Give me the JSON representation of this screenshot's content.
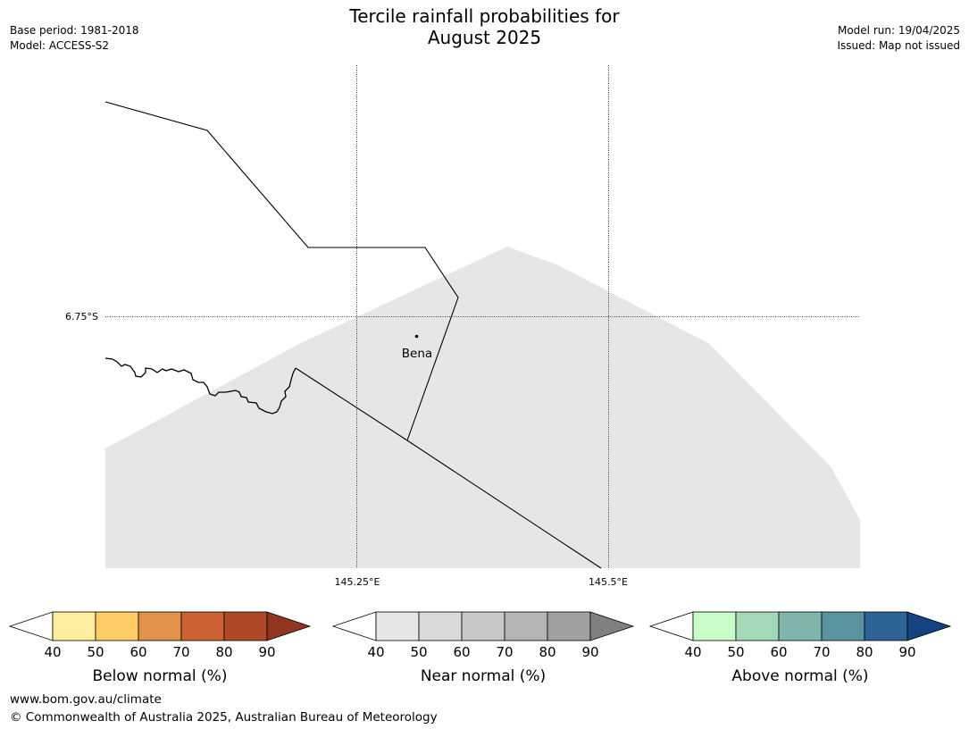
{
  "title": {
    "line1": "Tercile rainfall probabilities for",
    "line2": "August 2025"
  },
  "meta_left": {
    "base_period": "Base period: 1981-2018",
    "model": "Model: ACCESS-S2"
  },
  "meta_right": {
    "model_run": "Model run: 19/04/2025",
    "issued": "Issued: Map not issued"
  },
  "map": {
    "lat_label": "6.75°S",
    "lon_labels": [
      "145.25°E",
      "145.5°E"
    ],
    "place": "Bena",
    "no_data_color": "#e6e6e6"
  },
  "legends": [
    {
      "label": "Below normal (%)",
      "ticks": [
        "40",
        "50",
        "60",
        "70",
        "80",
        "90"
      ],
      "colors": [
        "#ffeda0",
        "#fecb65",
        "#e0914a",
        "#cc6233",
        "#ae4826",
        "#8f3520"
      ]
    },
    {
      "label": "Near normal (%)",
      "ticks": [
        "40",
        "50",
        "60",
        "70",
        "80",
        "90"
      ],
      "colors": [
        "#e6e6e6",
        "#d9d9d9",
        "#c8c8c8",
        "#b5b5b5",
        "#a0a0a0",
        "#808080"
      ]
    },
    {
      "label": "Above normal (%)",
      "ticks": [
        "40",
        "50",
        "60",
        "70",
        "80",
        "90"
      ],
      "colors": [
        "#c9fdc8",
        "#a3d8b9",
        "#7fb5ad",
        "#5a92a0",
        "#2e6395",
        "#14447f"
      ]
    }
  ],
  "footer": {
    "url": "www.bom.gov.au/climate",
    "copyright": "© Commonwealth of Australia 2025, Australian Bureau of Meteorology"
  }
}
